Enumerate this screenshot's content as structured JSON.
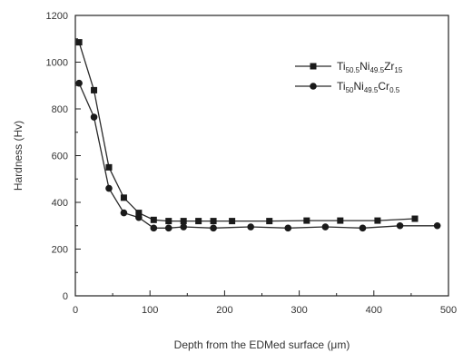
{
  "chart_data": {
    "type": "line",
    "xlabel": "Depth  from the EDMed surface  (μm)",
    "ylabel": "Hardness  (Hv)",
    "xlim": [
      0,
      500
    ],
    "ylim": [
      0,
      1200
    ],
    "xticks": [
      "0",
      "100",
      "200",
      "300",
      "400",
      "500"
    ],
    "yticks": [
      "0",
      "200",
      "400",
      "600",
      "800",
      "1000",
      "1200"
    ],
    "grid": false,
    "legend_position": "top-right",
    "series": [
      {
        "name": "Ti50.5Ni49.5Zr15",
        "legend": {
          "base1": "Ti",
          "sub1": "50.5",
          "base2": "Ni",
          "sub2": "49.5",
          "base3": "Zr",
          "sub3": "15"
        },
        "marker": "square",
        "linestyle": "solid",
        "x": [
          5,
          25,
          45,
          65,
          85,
          105,
          125,
          145,
          165,
          185,
          210,
          260,
          310,
          355,
          405,
          455
        ],
        "y": [
          1085,
          880,
          550,
          420,
          355,
          325,
          320,
          320,
          320,
          320,
          320,
          320,
          322,
          322,
          322,
          330
        ]
      },
      {
        "name": "Ti50Ni49.5Cr0.5",
        "legend": {
          "base1": "Ti",
          "sub1": "50",
          "base2": "Ni",
          "sub2": "49.5",
          "base3": "Cr",
          "sub3": "0.5"
        },
        "marker": "circle",
        "linestyle": "solid",
        "x": [
          5,
          25,
          45,
          65,
          85,
          105,
          125,
          145,
          185,
          235,
          285,
          335,
          385,
          435,
          485
        ],
        "y": [
          910,
          765,
          460,
          355,
          335,
          290,
          290,
          295,
          290,
          295,
          290,
          295,
          290,
          300,
          300
        ]
      }
    ]
  }
}
